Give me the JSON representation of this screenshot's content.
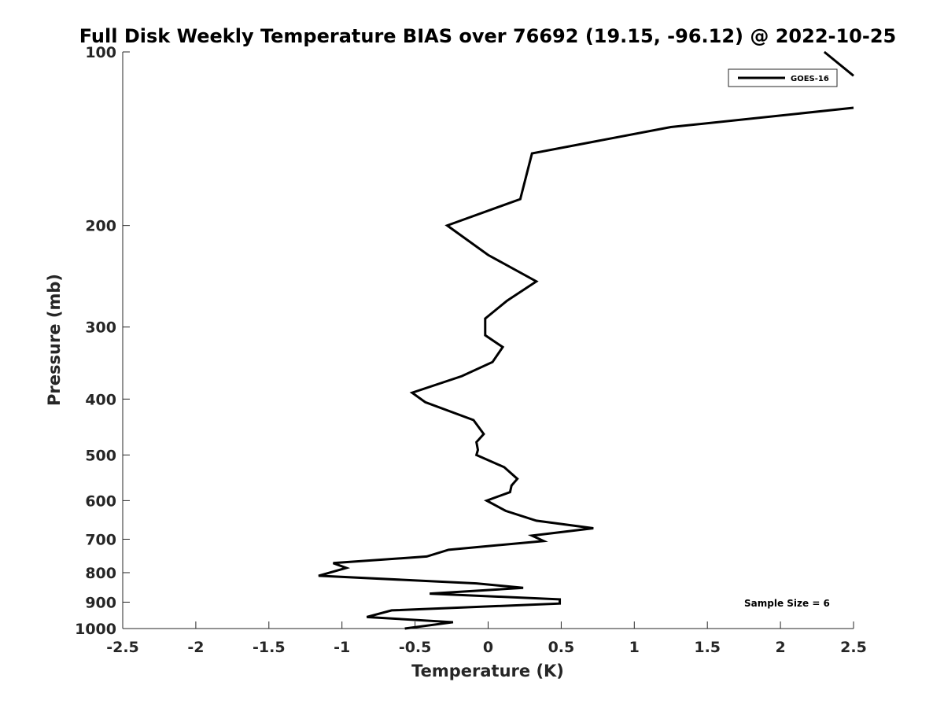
{
  "chart_data": {
    "type": "line",
    "title": "Full Disk Weekly Temperature BIAS over 76692 (19.15, -96.12) @ 2022-10-25",
    "xlabel": "Temperature (K)",
    "ylabel": "Pressure (mb)",
    "xlim": [
      -2.5,
      2.5
    ],
    "ylim": [
      100,
      1000
    ],
    "y_scale": "log",
    "y_reversed": true,
    "x_ticks": [
      "-2.5",
      "-2",
      "-1.5",
      "-1",
      "-0.5",
      "0",
      "0.5",
      "1",
      "1.5",
      "2",
      "2.5"
    ],
    "y_ticks": [
      "100",
      "200",
      "300",
      "400",
      "500",
      "600",
      "700",
      "800",
      "900",
      "1000"
    ],
    "grid": false,
    "legend_position": "top-right",
    "series": [
      {
        "name": "GOES-16",
        "color": "#000000",
        "x": [
          2.3,
          2.5
        ],
        "y": [
          100,
          110
        ],
        "points": [
          [
            2.3,
            100
          ],
          [
            2.5,
            110
          ]
        ]
      },
      {
        "name": "GOES-16",
        "color": "#000000",
        "points": [
          [
            2.5,
            125
          ],
          [
            1.25,
            135
          ],
          [
            0.3,
            150
          ],
          [
            0.22,
            180
          ],
          [
            -0.28,
            200
          ],
          [
            0.0,
            225
          ],
          [
            0.33,
            250
          ],
          [
            0.13,
            270
          ],
          [
            -0.02,
            290
          ],
          [
            -0.02,
            310
          ],
          [
            0.1,
            325
          ],
          [
            0.03,
            345
          ],
          [
            -0.18,
            365
          ],
          [
            -0.52,
            390
          ],
          [
            -0.43,
            405
          ],
          [
            -0.1,
            435
          ],
          [
            -0.03,
            460
          ],
          [
            -0.08,
            475
          ],
          [
            -0.07,
            490
          ],
          [
            -0.08,
            500
          ],
          [
            0.11,
            525
          ],
          [
            0.2,
            550
          ],
          [
            0.16,
            565
          ],
          [
            0.15,
            580
          ],
          [
            -0.01,
            600
          ],
          [
            0.12,
            625
          ],
          [
            0.33,
            650
          ],
          [
            0.72,
            670
          ],
          [
            0.3,
            690
          ],
          [
            0.38,
            705
          ],
          [
            -0.27,
            730
          ],
          [
            -0.42,
            750
          ],
          [
            -1.06,
            770
          ],
          [
            -0.97,
            785
          ],
          [
            -1.16,
            810
          ],
          [
            -0.08,
            835
          ],
          [
            0.24,
            850
          ],
          [
            -0.4,
            870
          ],
          [
            0.49,
            890
          ],
          [
            0.49,
            905
          ],
          [
            -0.66,
            930
          ],
          [
            -0.83,
            955
          ],
          [
            -0.24,
            975
          ],
          [
            -0.57,
            1000
          ]
        ]
      }
    ],
    "legend": [
      "GOES-16"
    ],
    "annotations": [
      "Sample Size = 6"
    ]
  }
}
